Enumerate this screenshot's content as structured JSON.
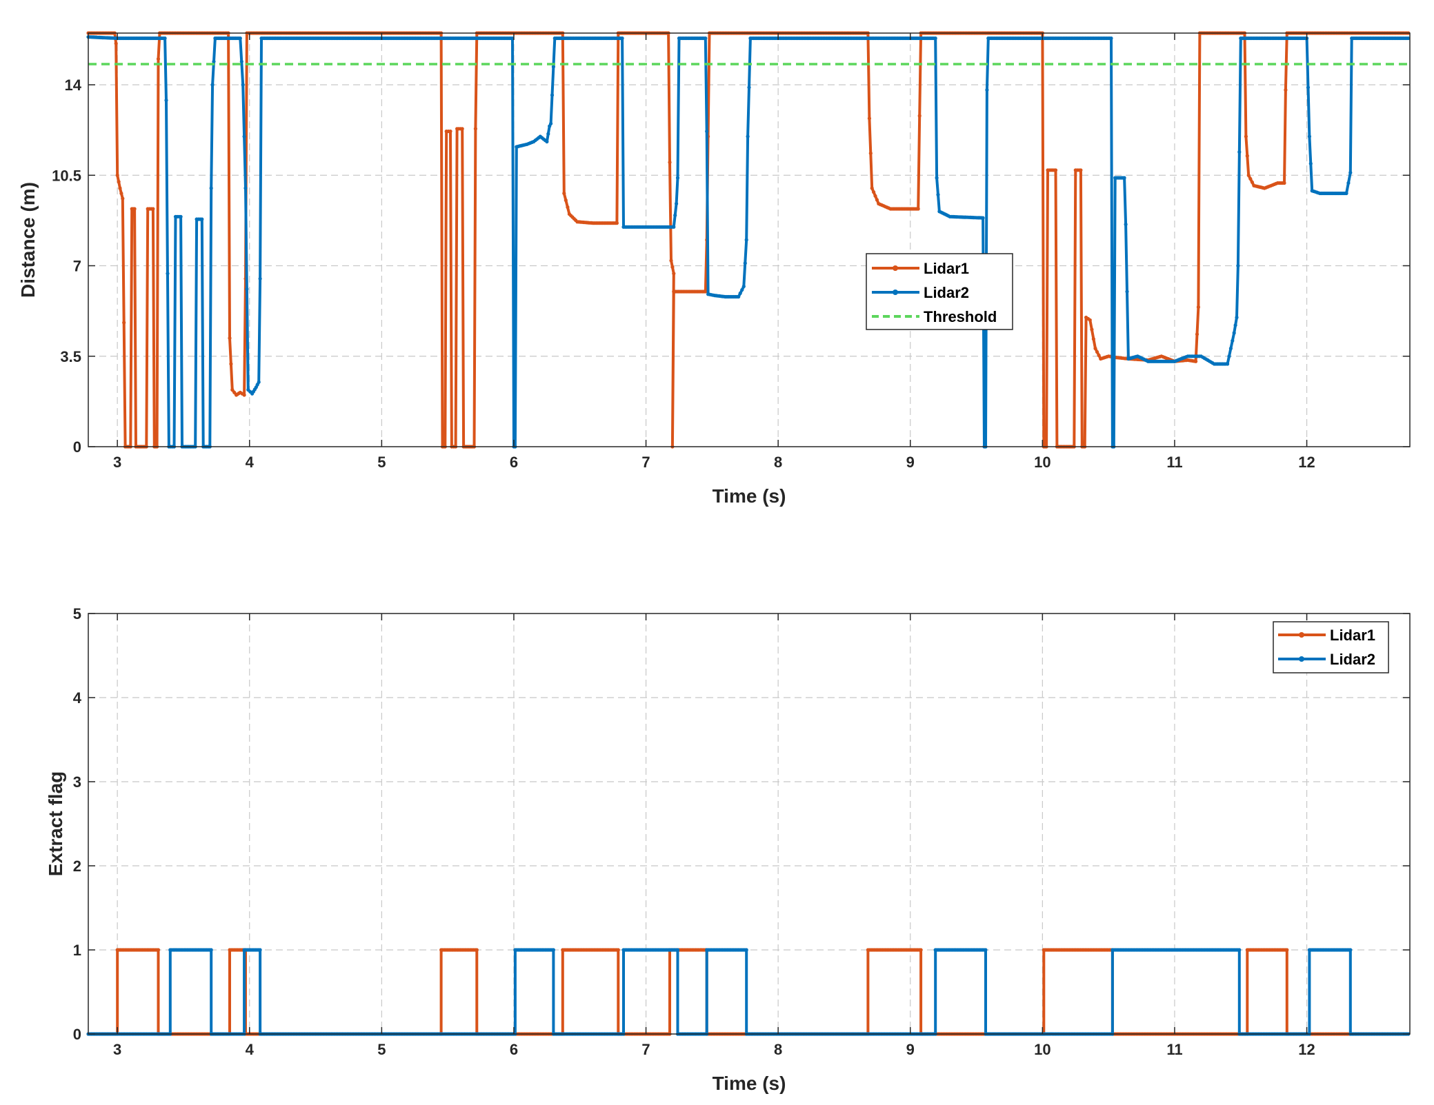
{
  "colors": {
    "lidar1": "#D95319",
    "lidar2": "#0072BD",
    "threshold": "#5CD65C",
    "grid": "#c8c8c8",
    "axis": "#262626"
  },
  "chart_data": [
    {
      "type": "line",
      "name": "distance",
      "title": "",
      "xlabel": "Time (s)",
      "ylabel": "Distance (m)",
      "xlim": [
        2.78,
        12.78
      ],
      "ylim": [
        0,
        16
      ],
      "xticks": [
        3,
        4,
        5,
        6,
        7,
        8,
        9,
        10,
        11,
        12
      ],
      "yticks": [
        0,
        3.5,
        7,
        10.5,
        14
      ],
      "ytick_labels": [
        "0",
        "3.5",
        "7",
        "10.5",
        "14"
      ],
      "grid": true,
      "legend_position": "center-right",
      "legend": [
        "Lidar1",
        "Lidar2",
        "Threshold"
      ],
      "series": [
        {
          "name": "Lidar1",
          "color_key": "lidar1",
          "marker": true,
          "points": [
            [
              2.78,
              16.0
            ],
            [
              2.98,
              16.0
            ],
            [
              2.99,
              15.6
            ],
            [
              3.0,
              10.5
            ],
            [
              3.02,
              10.0
            ],
            [
              3.04,
              9.6
            ],
            [
              3.06,
              0
            ],
            [
              3.1,
              0
            ],
            [
              3.11,
              9.2
            ],
            [
              3.13,
              9.2
            ],
            [
              3.14,
              0
            ],
            [
              3.22,
              0
            ],
            [
              3.23,
              9.2
            ],
            [
              3.27,
              9.2
            ],
            [
              3.28,
              0
            ],
            [
              3.3,
              0
            ],
            [
              3.31,
              15.0
            ],
            [
              3.32,
              16.0
            ],
            [
              3.84,
              16.0
            ],
            [
              3.85,
              4.2
            ],
            [
              3.87,
              2.2
            ],
            [
              3.9,
              2.0
            ],
            [
              3.93,
              2.1
            ],
            [
              3.96,
              2.0
            ],
            [
              3.97,
              6.5
            ],
            [
              3.98,
              16.0
            ],
            [
              5.45,
              16.0
            ],
            [
              5.46,
              0
            ],
            [
              5.48,
              0
            ],
            [
              5.49,
              12.2
            ],
            [
              5.52,
              12.2
            ],
            [
              5.53,
              0
            ],
            [
              5.56,
              0
            ],
            [
              5.57,
              12.3
            ],
            [
              5.61,
              12.3
            ],
            [
              5.62,
              0
            ],
            [
              5.7,
              0
            ],
            [
              5.71,
              12.3
            ],
            [
              5.72,
              16.0
            ],
            [
              6.37,
              16.0
            ],
            [
              6.38,
              9.8
            ],
            [
              6.42,
              9.0
            ],
            [
              6.48,
              8.7
            ],
            [
              6.6,
              8.65
            ],
            [
              6.78,
              8.65
            ],
            [
              6.79,
              16.0
            ],
            [
              7.17,
              16.0
            ],
            [
              7.18,
              11.0
            ],
            [
              7.19,
              7.2
            ],
            [
              7.21,
              6.7
            ],
            [
              7.2,
              0
            ],
            [
              7.21,
              6.0
            ],
            [
              7.45,
              6.0
            ],
            [
              7.46,
              8.0
            ],
            [
              7.48,
              16.0
            ],
            [
              8.68,
              16.0
            ],
            [
              8.69,
              12.7
            ],
            [
              8.71,
              10.0
            ],
            [
              8.76,
              9.4
            ],
            [
              8.85,
              9.2
            ],
            [
              9.06,
              9.2
            ],
            [
              9.07,
              12.8
            ],
            [
              9.08,
              16.0
            ],
            [
              10.0,
              16.0
            ],
            [
              10.01,
              0
            ],
            [
              10.03,
              0
            ],
            [
              10.04,
              10.7
            ],
            [
              10.1,
              10.7
            ],
            [
              10.11,
              0
            ],
            [
              10.24,
              0
            ],
            [
              10.25,
              10.7
            ],
            [
              10.29,
              10.7
            ],
            [
              10.3,
              0
            ],
            [
              10.32,
              0
            ],
            [
              10.33,
              5.0
            ],
            [
              10.36,
              4.9
            ],
            [
              10.4,
              3.8
            ],
            [
              10.44,
              3.4
            ],
            [
              10.5,
              3.5
            ],
            [
              10.56,
              3.45
            ],
            [
              10.65,
              3.4
            ],
            [
              10.8,
              3.35
            ],
            [
              10.9,
              3.5
            ],
            [
              11.0,
              3.3
            ],
            [
              11.1,
              3.35
            ],
            [
              11.16,
              3.3
            ],
            [
              11.18,
              5.4
            ],
            [
              11.19,
              16.0
            ],
            [
              11.53,
              16.0
            ],
            [
              11.54,
              12.0
            ],
            [
              11.56,
              10.5
            ],
            [
              11.6,
              10.1
            ],
            [
              11.68,
              10.0
            ],
            [
              11.78,
              10.2
            ],
            [
              11.83,
              10.2
            ],
            [
              11.84,
              13.8
            ],
            [
              11.85,
              16.0
            ],
            [
              12.78,
              16.0
            ]
          ]
        },
        {
          "name": "Lidar2",
          "color_key": "lidar2",
          "marker": true,
          "points": [
            [
              2.78,
              15.85
            ],
            [
              3.0,
              15.8
            ],
            [
              3.3,
              15.8
            ],
            [
              3.36,
              15.8
            ],
            [
              3.37,
              13.4
            ],
            [
              3.39,
              0
            ],
            [
              3.43,
              0
            ],
            [
              3.44,
              8.9
            ],
            [
              3.48,
              8.9
            ],
            [
              3.49,
              0
            ],
            [
              3.59,
              0
            ],
            [
              3.6,
              8.8
            ],
            [
              3.64,
              8.8
            ],
            [
              3.65,
              0
            ],
            [
              3.7,
              0
            ],
            [
              3.71,
              10.0
            ],
            [
              3.72,
              14.0
            ],
            [
              3.74,
              15.8
            ],
            [
              3.93,
              15.8
            ],
            [
              3.95,
              14.0
            ],
            [
              3.97,
              10.0
            ],
            [
              3.99,
              2.2
            ],
            [
              4.02,
              2.05
            ],
            [
              4.05,
              2.3
            ],
            [
              4.07,
              2.5
            ],
            [
              4.08,
              6.5
            ],
            [
              4.09,
              15.8
            ],
            [
              5.99,
              15.8
            ],
            [
              6.0,
              0
            ],
            [
              6.01,
              0
            ],
            [
              6.02,
              11.6
            ],
            [
              6.1,
              11.7
            ],
            [
              6.15,
              11.8
            ],
            [
              6.2,
              12.0
            ],
            [
              6.25,
              11.8
            ],
            [
              6.27,
              12.4
            ],
            [
              6.28,
              12.5
            ],
            [
              6.29,
              13.6
            ],
            [
              6.31,
              15.8
            ],
            [
              6.82,
              15.8
            ],
            [
              6.83,
              8.5
            ],
            [
              7.21,
              8.5
            ],
            [
              7.23,
              9.4
            ],
            [
              7.24,
              10.4
            ],
            [
              7.25,
              15.8
            ],
            [
              7.45,
              15.8
            ],
            [
              7.46,
              12.2
            ],
            [
              7.47,
              5.9
            ],
            [
              7.52,
              5.85
            ],
            [
              7.6,
              5.8
            ],
            [
              7.7,
              5.8
            ],
            [
              7.74,
              6.2
            ],
            [
              7.76,
              8.0
            ],
            [
              7.77,
              12.0
            ],
            [
              7.79,
              15.8
            ],
            [
              9.19,
              15.8
            ],
            [
              9.2,
              10.4
            ],
            [
              9.22,
              9.1
            ],
            [
              9.3,
              8.9
            ],
            [
              9.55,
              8.85
            ],
            [
              9.56,
              0
            ],
            [
              9.57,
              0
            ],
            [
              9.58,
              13.8
            ],
            [
              9.59,
              15.8
            ],
            [
              10.52,
              15.8
            ],
            [
              10.53,
              0
            ],
            [
              10.54,
              0
            ],
            [
              10.55,
              10.4
            ],
            [
              10.62,
              10.4
            ],
            [
              10.63,
              8.6
            ],
            [
              10.65,
              3.4
            ],
            [
              10.72,
              3.5
            ],
            [
              10.8,
              3.3
            ],
            [
              11.0,
              3.3
            ],
            [
              11.1,
              3.5
            ],
            [
              11.2,
              3.5
            ],
            [
              11.3,
              3.2
            ],
            [
              11.4,
              3.2
            ],
            [
              11.45,
              4.4
            ],
            [
              11.47,
              5.0
            ],
            [
              11.48,
              7.0
            ],
            [
              11.5,
              15.8
            ],
            [
              12.0,
              15.8
            ],
            [
              12.02,
              12.0
            ],
            [
              12.04,
              9.9
            ],
            [
              12.1,
              9.8
            ],
            [
              12.3,
              9.8
            ],
            [
              12.33,
              10.6
            ],
            [
              12.34,
              15.8
            ],
            [
              12.78,
              15.8
            ]
          ]
        },
        {
          "name": "Threshold",
          "color_key": "threshold",
          "style": "dashed",
          "points": [
            [
              2.78,
              14.8
            ],
            [
              12.78,
              14.8
            ]
          ]
        }
      ]
    },
    {
      "type": "line",
      "name": "extract-flag",
      "title": "",
      "xlabel": "Time (s)",
      "ylabel": "Extract flag",
      "xlim": [
        2.78,
        12.78
      ],
      "ylim": [
        0,
        5
      ],
      "xticks": [
        3,
        4,
        5,
        6,
        7,
        8,
        9,
        10,
        11,
        12
      ],
      "yticks": [
        0,
        1,
        2,
        3,
        4,
        5
      ],
      "ytick_labels": [
        "0",
        "1",
        "2",
        "3",
        "4",
        "5"
      ],
      "grid": true,
      "legend_position": "top-right",
      "legend": [
        "Lidar1",
        "Lidar2"
      ],
      "series": [
        {
          "name": "Lidar1",
          "color_key": "lidar1",
          "marker": true,
          "pulses": [
            [
              3.0,
              3.31
            ],
            [
              3.85,
              3.97
            ],
            [
              5.45,
              5.72
            ],
            [
              6.37,
              6.79
            ],
            [
              7.18,
              7.46
            ],
            [
              8.68,
              9.08
            ],
            [
              10.01,
              10.53
            ],
            [
              11.55,
              11.85
            ]
          ]
        },
        {
          "name": "Lidar2",
          "color_key": "lidar2",
          "marker": true,
          "pulses": [
            [
              3.4,
              3.71
            ],
            [
              3.96,
              4.08
            ],
            [
              6.01,
              6.3
            ],
            [
              6.83,
              7.24
            ],
            [
              7.46,
              7.76
            ],
            [
              9.19,
              9.57
            ],
            [
              10.53,
              11.49
            ],
            [
              12.02,
              12.33
            ]
          ]
        }
      ]
    }
  ]
}
